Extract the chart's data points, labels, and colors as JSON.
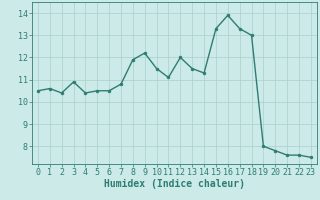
{
  "x": [
    0,
    1,
    2,
    3,
    4,
    5,
    6,
    7,
    8,
    9,
    10,
    11,
    12,
    13,
    14,
    15,
    16,
    17,
    18,
    19,
    20,
    21,
    22,
    23
  ],
  "y": [
    10.5,
    10.6,
    10.4,
    10.9,
    10.4,
    10.5,
    10.5,
    10.8,
    11.9,
    12.2,
    11.5,
    11.1,
    12.0,
    11.5,
    11.3,
    13.3,
    13.9,
    13.3,
    13.0,
    8.0,
    7.8,
    7.6,
    7.6,
    7.5
  ],
  "line_color": "#2e7d72",
  "marker": "o",
  "marker_size": 2,
  "bg_color": "#cceae7",
  "grid_color": "#aacfcc",
  "xlabel": "Humidex (Indice chaleur)",
  "ylim": [
    7.2,
    14.5
  ],
  "xlim": [
    -0.5,
    23.5
  ],
  "yticks": [
    8,
    9,
    10,
    11,
    12,
    13,
    14
  ],
  "xticks": [
    0,
    1,
    2,
    3,
    4,
    5,
    6,
    7,
    8,
    9,
    10,
    11,
    12,
    13,
    14,
    15,
    16,
    17,
    18,
    19,
    20,
    21,
    22,
    23
  ],
  "tick_color": "#2e7d72",
  "label_color": "#2e7d72",
  "axis_color": "#2e7d72",
  "xlabel_fontsize": 7,
  "tick_fontsize": 6,
  "linewidth": 1.0
}
